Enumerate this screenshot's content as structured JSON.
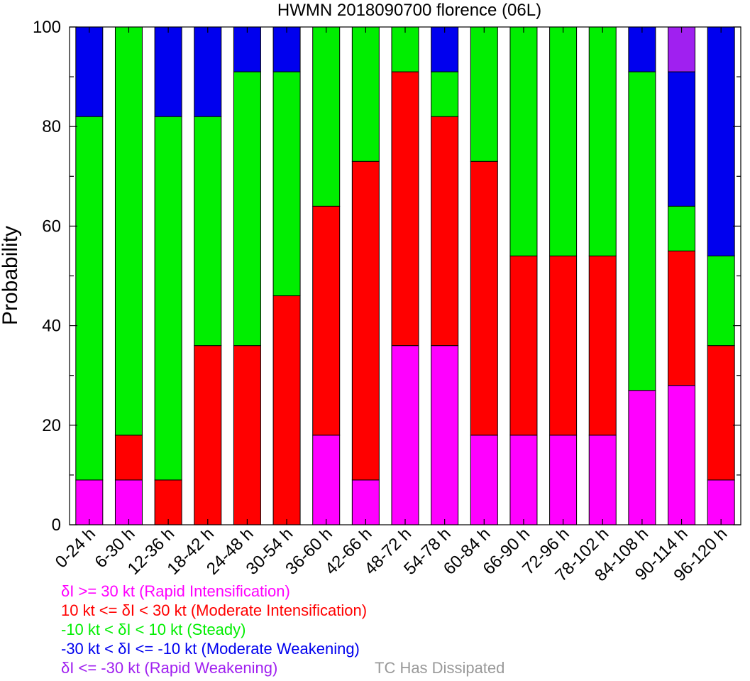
{
  "chart_data": {
    "type": "bar",
    "stacked": true,
    "title": "HWMN 2018090700 florence (06L)",
    "ylabel": "Probability",
    "ylim": [
      0,
      100
    ],
    "yticks": [
      "0",
      "20",
      "40",
      "60",
      "80",
      "100"
    ],
    "categories": [
      "0-24 h",
      "6-30 h",
      "12-36 h",
      "18-42 h",
      "24-48 h",
      "30-54 h",
      "36-60 h",
      "42-66 h",
      "48-72 h",
      "54-78 h",
      "60-84 h",
      "66-90 h",
      "72-96 h",
      "78-102 h",
      "84-108 h",
      "90-114 h",
      "96-120 h"
    ],
    "series": [
      {
        "name": "δI >= 30 kt (Rapid Intensification)",
        "color": "#ff00ff",
        "values": [
          9,
          9,
          0,
          0,
          0,
          0,
          18,
          9,
          36,
          36,
          18,
          18,
          18,
          18,
          27,
          28,
          9
        ]
      },
      {
        "name": "10 kt <= δI < 30 kt (Moderate Intensification)",
        "color": "#ff0000",
        "values": [
          0,
          9,
          9,
          36,
          36,
          46,
          46,
          64,
          55,
          46,
          55,
          36,
          36,
          36,
          0,
          27,
          27
        ]
      },
      {
        "name": "-10 kt < δI < 10 kt (Steady)",
        "color": "#00ee00",
        "values": [
          73,
          82,
          73,
          46,
          55,
          45,
          36,
          27,
          9,
          9,
          27,
          46,
          46,
          46,
          64,
          9,
          18
        ]
      },
      {
        "name": "-30 kt < δI <= -10 kt (Moderate Weakening)",
        "color": "#0000ee",
        "values": [
          18,
          0,
          18,
          18,
          9,
          9,
          0,
          0,
          0,
          9,
          0,
          0,
          0,
          0,
          9,
          27,
          46
        ]
      },
      {
        "name": "δI <= -30 kt (Rapid Weakening)",
        "color": "#a020f0",
        "values": [
          0,
          0,
          0,
          0,
          0,
          0,
          0,
          0,
          0,
          0,
          0,
          0,
          0,
          0,
          0,
          9,
          0
        ]
      }
    ],
    "extra_legend": {
      "label": "TC Has Dissipated",
      "color": "#999999"
    },
    "grid": false
  }
}
